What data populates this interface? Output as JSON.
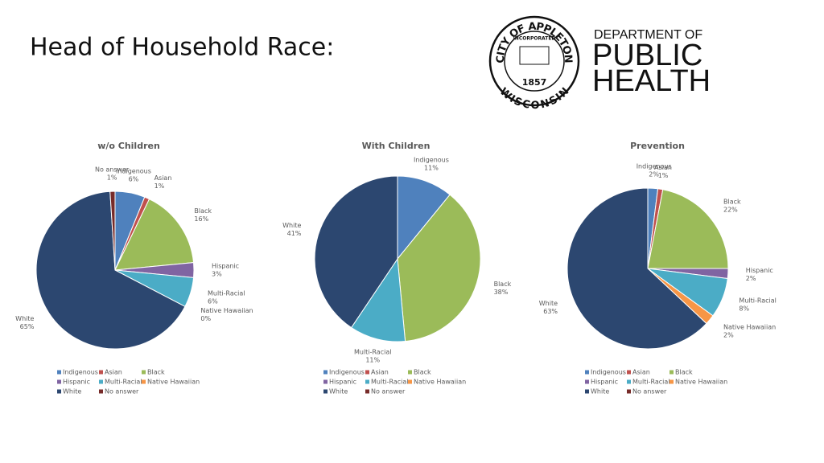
{
  "title": "Head of Household Race:",
  "logo": {
    "ring_top": "CITY OF APPLETON",
    "banner": "INCORPORATED",
    "year": "1857",
    "ring_bottom": "WISCONSIN",
    "dept": "DEPARTMENT OF",
    "line1": "PUBLIC",
    "line2": "HEALTH"
  },
  "chart_data": [
    {
      "type": "pie",
      "title": "w/o Children",
      "legend": "bottom",
      "categories": [
        "Indigenous",
        "Asian",
        "Black",
        "Hispanic",
        "Multi-Racial",
        "Native Hawaiian",
        "White",
        "No answer"
      ],
      "colors": [
        "#4f81bd",
        "#c0504d",
        "#9bbb59",
        "#8064a2",
        "#4bacc6",
        "#f79646",
        "#2c4770",
        "#772c2a"
      ],
      "values": [
        6,
        1,
        16,
        3,
        6,
        0,
        65,
        1
      ],
      "value_labels": [
        "6%",
        "1%",
        "16%",
        "3%",
        "6%",
        "0%",
        "65%",
        "1%"
      ]
    },
    {
      "type": "pie",
      "title": "With Children",
      "legend": "bottom",
      "categories": [
        "Indigenous",
        "Asian",
        "Black",
        "Hispanic",
        "Multi-Racial",
        "Native Hawaiian",
        "White",
        "No answer"
      ],
      "colors": [
        "#4f81bd",
        "#c0504d",
        "#9bbb59",
        "#8064a2",
        "#4bacc6",
        "#f79646",
        "#2c4770",
        "#772c2a"
      ],
      "values": [
        11,
        0,
        38,
        0,
        11,
        0,
        41,
        0
      ],
      "value_labels": [
        "11%",
        null,
        "38%",
        null,
        "11%",
        null,
        "41%",
        null
      ]
    },
    {
      "type": "pie",
      "title": "Prevention",
      "legend": "bottom",
      "categories": [
        "Indigenous",
        "Asian",
        "Black",
        "Hispanic",
        "Multi-Racial",
        "Native Hawaiian",
        "White",
        "No answer"
      ],
      "colors": [
        "#4f81bd",
        "#c0504d",
        "#9bbb59",
        "#8064a2",
        "#4bacc6",
        "#f79646",
        "#2c4770",
        "#772c2a"
      ],
      "values": [
        2,
        1,
        22,
        2,
        8,
        2,
        63,
        0
      ],
      "value_labels": [
        "2%",
        "1%",
        "22%",
        "2%",
        "8%",
        "2%",
        "63%",
        null
      ]
    }
  ]
}
